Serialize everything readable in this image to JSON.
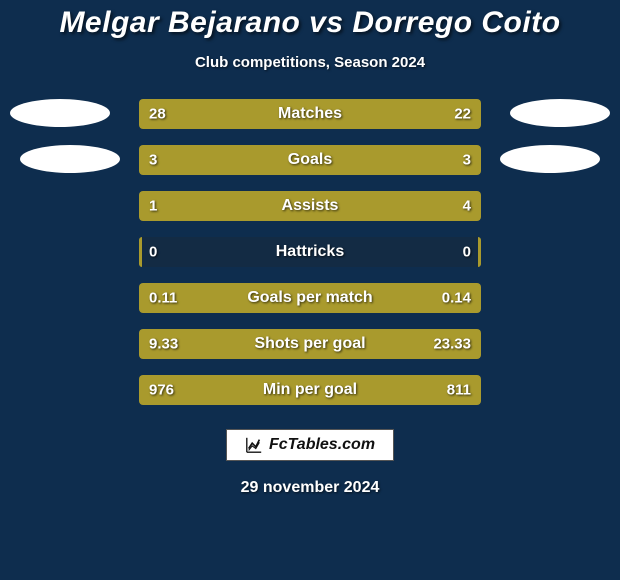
{
  "background_color": "#0e2d4e",
  "text_color": "#ffffff",
  "title": "Melgar Bejarano vs Dorrego Coito",
  "subtitle": "Club competitions, Season 2024",
  "date": "29 november 2024",
  "logo_text": "FcTables.com",
  "bar_track_color": "#132b44",
  "bar_left_color": "#a99a2d",
  "bar_right_color": "#a99a2d",
  "ellipse_color": "#ffffff",
  "stats": [
    {
      "label": "Matches",
      "left_val": "28",
      "right_val": "22",
      "left_pct": 56,
      "right_pct": 44
    },
    {
      "label": "Goals",
      "left_val": "3",
      "right_val": "3",
      "left_pct": 50,
      "right_pct": 50
    },
    {
      "label": "Assists",
      "left_val": "1",
      "right_val": "4",
      "left_pct": 20,
      "right_pct": 80
    },
    {
      "label": "Hattricks",
      "left_val": "0",
      "right_val": "0",
      "left_pct": 1,
      "right_pct": 1
    },
    {
      "label": "Goals per match",
      "left_val": "0.11",
      "right_val": "0.14",
      "left_pct": 44,
      "right_pct": 56
    },
    {
      "label": "Shots per goal",
      "left_val": "9.33",
      "right_val": "23.33",
      "left_pct": 29,
      "right_pct": 71
    },
    {
      "label": "Min per goal",
      "left_val": "976",
      "right_val": "811",
      "left_pct": 55,
      "right_pct": 45
    }
  ]
}
